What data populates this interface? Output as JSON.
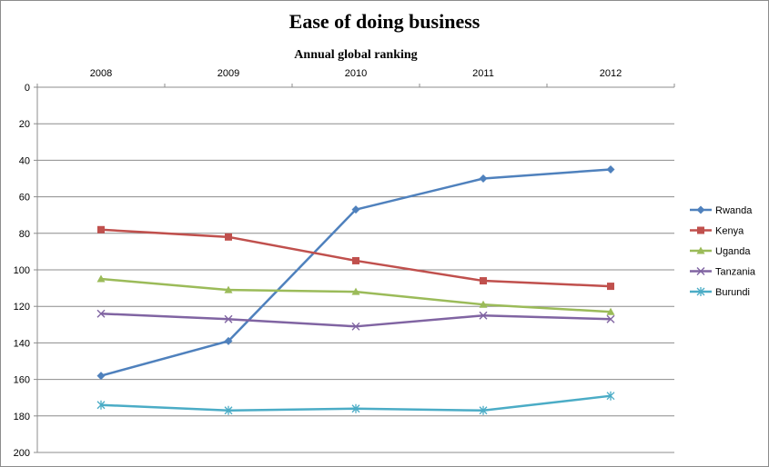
{
  "chart_data": {
    "type": "line",
    "title": "Ease of doing business",
    "xlabel": "Annual global ranking",
    "ylabel": "",
    "x": [
      "2008",
      "2009",
      "2010",
      "2011",
      "2012"
    ],
    "ylim": [
      0,
      200
    ],
    "y_reversed": true,
    "y_ticks": [
      0,
      20,
      40,
      60,
      80,
      100,
      120,
      140,
      160,
      180,
      200
    ],
    "x_axis_position": "top",
    "grid": "horizontal",
    "legend_position": "right",
    "series": [
      {
        "name": "Rwanda",
        "values": [
          158,
          139,
          67,
          50,
          45
        ],
        "color": "#4f81bd",
        "marker": "diamond"
      },
      {
        "name": "Kenya",
        "values": [
          78,
          82,
          95,
          106,
          109
        ],
        "color": "#c0504d",
        "marker": "square"
      },
      {
        "name": "Uganda",
        "values": [
          105,
          111,
          112,
          119,
          123
        ],
        "color": "#9bbb59",
        "marker": "triangle"
      },
      {
        "name": "Tanzania",
        "values": [
          124,
          127,
          131,
          125,
          127
        ],
        "color": "#8064a2",
        "marker": "x"
      },
      {
        "name": "Burundi",
        "values": [
          174,
          177,
          176,
          177,
          169
        ],
        "color": "#4bacc6",
        "marker": "star"
      }
    ]
  }
}
